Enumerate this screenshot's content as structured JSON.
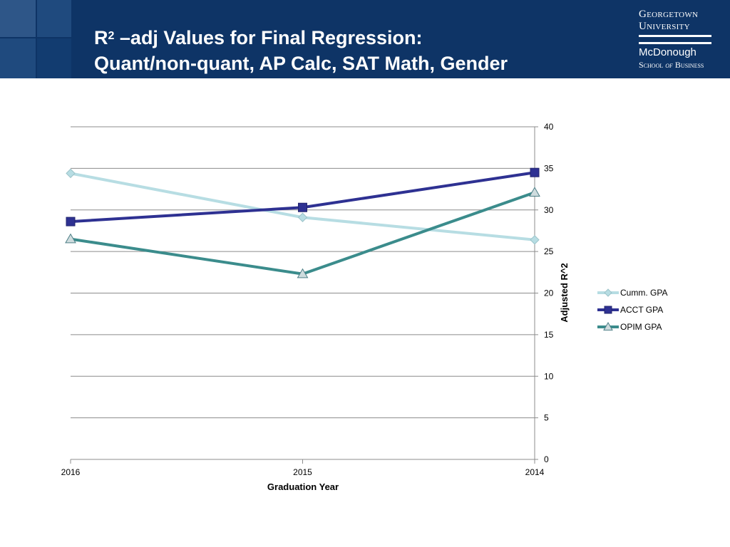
{
  "slide": {
    "title_prefix": "R",
    "title_sup": "2",
    "title_rest": " –adj Values for Final Regression:",
    "title_line2": "Quant/non-quant, AP Calc, SAT Math, Gender"
  },
  "logo": {
    "line1": "Georgetown",
    "line2": "University",
    "line3": "McDonough",
    "line4_a": "School ",
    "line4_b": "of",
    "line4_c": " Business"
  },
  "colors": {
    "header_bg": "#0e3466",
    "cumm": "#b7dde3",
    "acct": "#2e3192",
    "opim": "#3b8c8c",
    "grid": "#8c8c8c"
  },
  "chart_data": {
    "type": "line",
    "categories": [
      "2016",
      "2015",
      "2014"
    ],
    "xlabel": "Graduation Year",
    "ylabel": "Adjusted R^2",
    "ylim": [
      0,
      40
    ],
    "yticks": [
      0,
      5,
      10,
      15,
      20,
      25,
      30,
      35,
      40
    ],
    "y_axis_side": "right",
    "grid": true,
    "legend_position": "right",
    "series": [
      {
        "name": "Cumm. GPA",
        "values": [
          34.4,
          29.1,
          26.4
        ],
        "marker": "diamond",
        "color": "#b7dde3"
      },
      {
        "name": "ACCT GPA",
        "values": [
          28.6,
          30.3,
          34.5
        ],
        "marker": "square",
        "color": "#2e3192"
      },
      {
        "name": "OPIM GPA",
        "values": [
          26.5,
          22.3,
          32.1
        ],
        "marker": "triangle",
        "color": "#3b8c8c"
      }
    ]
  }
}
